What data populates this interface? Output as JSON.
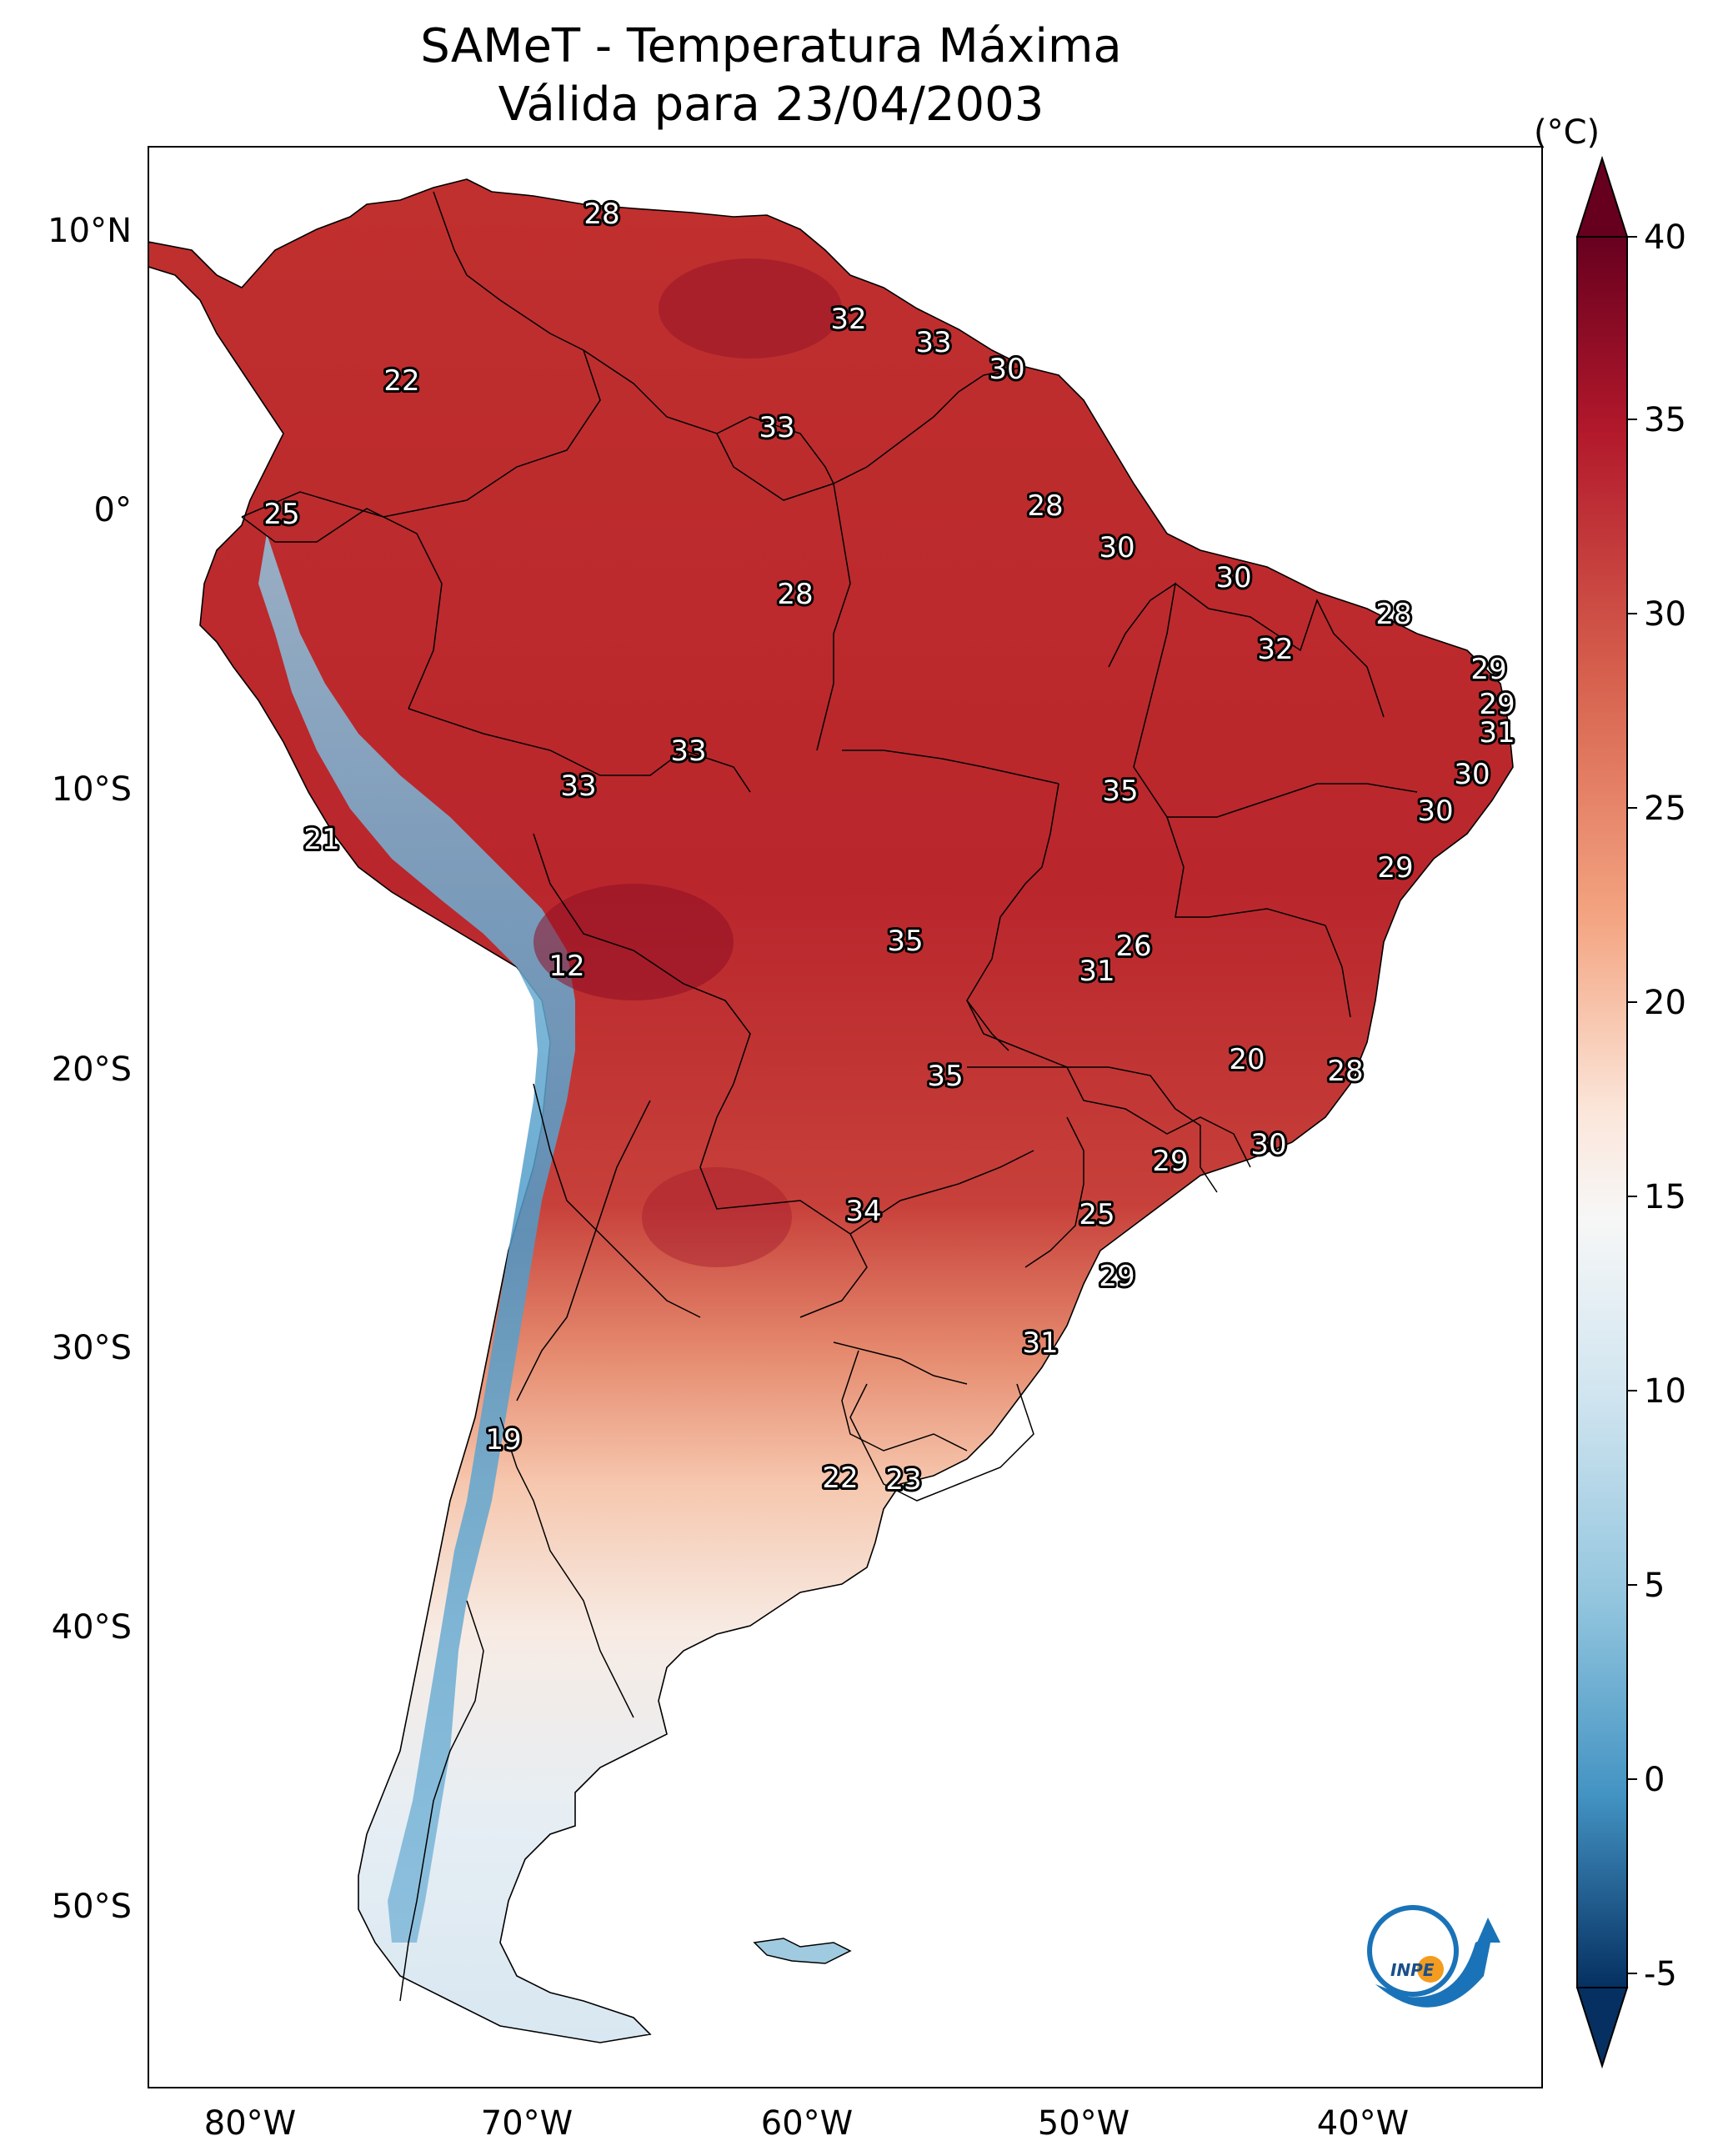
{
  "title": {
    "line1": "SAMeT - Temperatura Máxima",
    "line2": "Válida para 23/04/2003"
  },
  "axes": {
    "lat_labels": [
      "10°N",
      "0°",
      "10°S",
      "20°S",
      "30°S",
      "40°S",
      "50°S"
    ],
    "lon_labels": [
      "80°W",
      "70°W",
      "60°W",
      "50°W",
      "40°W"
    ]
  },
  "colorbar": {
    "unit": "(°C)",
    "ticks": [
      "40",
      "35",
      "30",
      "25",
      "20",
      "15",
      "10",
      "5",
      "0",
      "-5"
    ],
    "colors": {
      "max": "#67001f",
      "high": "#b2182b",
      "warm": "#d6604d",
      "mild": "#f4a582",
      "neutral": "#f7f7f7",
      "cool": "#92c5de",
      "cold": "#4393c3",
      "min": "#053061"
    }
  },
  "contour_labels": [
    "28",
    "32",
    "33",
    "30",
    "22",
    "33",
    "25",
    "28",
    "30",
    "30",
    "28",
    "28",
    "32",
    "29",
    "29",
    "31",
    "33",
    "33",
    "30",
    "35",
    "30",
    "21",
    "29",
    "26",
    "35",
    "12",
    "31",
    "20",
    "28",
    "35",
    "29",
    "30",
    "34",
    "25",
    "29",
    "31",
    "19",
    "22",
    "23"
  ],
  "logo": {
    "text": "INPE",
    "icon": "inpe-logo-icon"
  }
}
